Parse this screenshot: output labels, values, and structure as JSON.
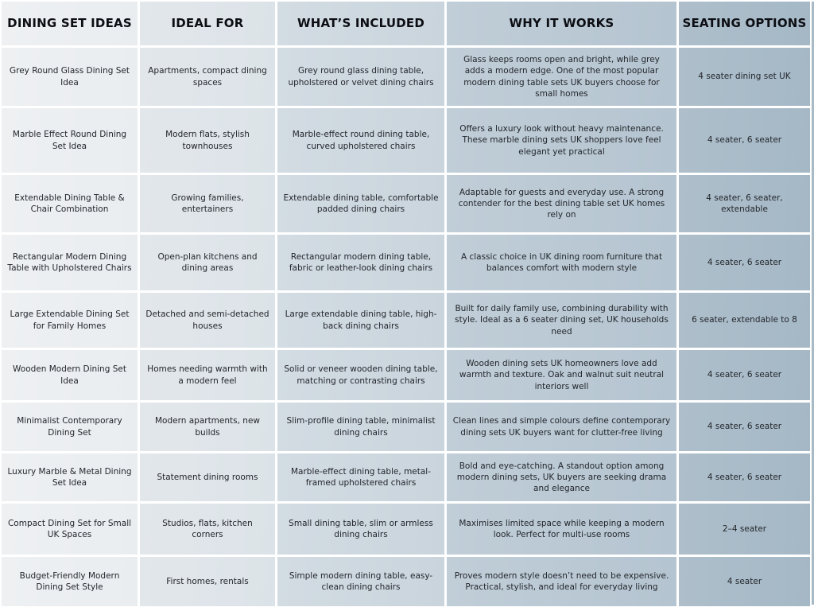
{
  "colors": {
    "grid_line": "#ffffff",
    "col_dining_ideas_bg": "#edeff1",
    "col_ideal_for_bg": "#dfe5e9",
    "col_whats_included_bg": "#ced8e0",
    "col_why_it_works_bg": "#bac8d3",
    "col_seating_bg": "#a9bbc8",
    "header_text": "#0c0e13",
    "body_text": "#23262c"
  },
  "chart_data": {
    "type": "table",
    "title": "",
    "columns": [
      "DINING SET IDEAS",
      "IDEAL FOR",
      "WHAT’S INCLUDED",
      "WHY IT WORKS",
      "SEATING OPTIONS"
    ],
    "rows": [
      {
        "idea": "Grey Round Glass Dining Set Idea",
        "ideal_for": "Apartments, compact dining spaces",
        "included": "Grey round glass dining table, upholstered or velvet dining chairs",
        "why": "Glass keeps rooms open and bright, while grey adds a modern edge. One of the most popular modern dining table sets UK buyers choose for small homes",
        "seating": "4 seater dining set UK"
      },
      {
        "idea": "Marble Effect Round Dining Set Idea",
        "ideal_for": "Modern flats, stylish townhouses",
        "included": "Marble-effect round dining table, curved upholstered chairs",
        "why": "Offers a luxury look without heavy maintenance. These marble dining sets UK shoppers love feel elegant yet practical",
        "seating": "4 seater, 6 seater"
      },
      {
        "idea": "Extendable Dining Table & Chair Combination",
        "ideal_for": "Growing families, entertainers",
        "included": "Extendable dining table, comfortable padded dining chairs",
        "why": "Adaptable for guests and everyday use. A strong contender for the best dining table set UK homes rely on",
        "seating": "4 seater, 6 seater, extendable"
      },
      {
        "idea": "Rectangular Modern Dining Table with Upholstered Chairs",
        "ideal_for": "Open-plan kitchens and dining areas",
        "included": "Rectangular modern dining table, fabric or leather-look dining chairs",
        "why": "A classic choice in UK dining room furniture that balances comfort with modern style",
        "seating": "4 seater, 6 seater"
      },
      {
        "idea": "Large Extendable Dining Set for Family Homes",
        "ideal_for": "Detached and semi-detached houses",
        "included": "Large extendable dining table, high-back dining chairs",
        "why": "Built for daily family use, combining durability with style. Ideal as a 6 seater dining set, UK households need",
        "seating": "6 seater, extendable to 8"
      },
      {
        "idea": "Wooden Modern Dining Set Idea",
        "ideal_for": "Homes needing warmth with a modern feel",
        "included": "Solid or veneer wooden dining table, matching or contrasting chairs",
        "why": "Wooden dining sets UK homeowners love add warmth and texture. Oak and walnut suit neutral interiors well",
        "seating": "4 seater, 6 seater"
      },
      {
        "idea": "Minimalist Contemporary Dining Set",
        "ideal_for": "Modern apartments, new builds",
        "included": "Slim-profile dining table, minimalist dining chairs",
        "why": "Clean lines and simple colours define contemporary dining sets UK buyers want for clutter-free living",
        "seating": "4 seater, 6 seater"
      },
      {
        "idea": "Luxury Marble & Metal Dining Set Idea",
        "ideal_for": "Statement dining rooms",
        "included": "Marble-effect dining table, metal-framed upholstered chairs",
        "why": "Bold and eye-catching. A standout option among modern dining sets, UK buyers are seeking drama and elegance",
        "seating": "4 seater, 6 seater"
      },
      {
        "idea": "Compact Dining Set for Small UK Spaces",
        "ideal_for": "Studios, flats, kitchen corners",
        "included": "Small dining table, slim or armless dining chairs",
        "why": "Maximises limited space while keeping a modern look. Perfect for multi-use rooms",
        "seating": "2–4 seater"
      },
      {
        "idea": "Budget-Friendly Modern Dining Set Style",
        "ideal_for": "First homes, rentals",
        "included": "Simple modern dining table, easy-clean dining chairs",
        "why": "Proves modern style doesn’t need to be expensive. Practical, stylish, and ideal for everyday living",
        "seating": "4 seater"
      }
    ]
  }
}
